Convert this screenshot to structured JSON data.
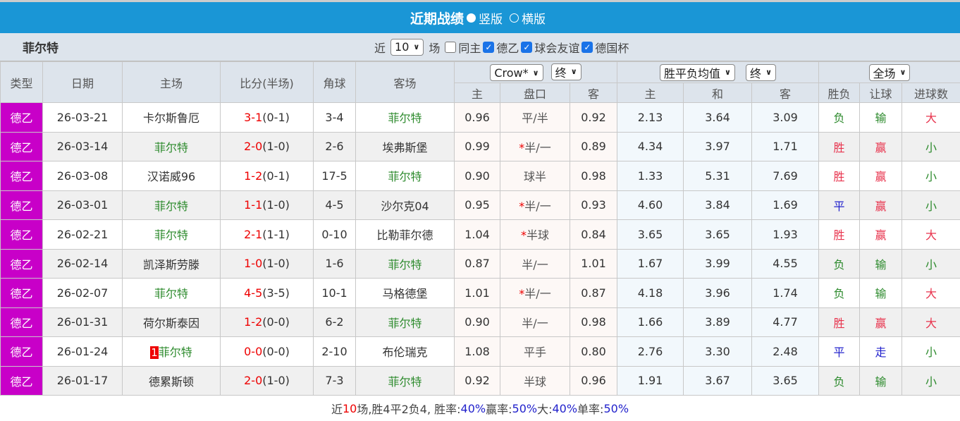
{
  "header": {
    "title": "近期战绩",
    "options": [
      {
        "label": "竖版",
        "selected": true
      },
      {
        "label": "横版",
        "selected": false
      }
    ]
  },
  "team": "菲尔特",
  "filters": {
    "prefix": "近",
    "count": "10",
    "suffix": "场",
    "checks": [
      {
        "label": "同主",
        "checked": false
      },
      {
        "label": "德乙",
        "checked": true
      },
      {
        "label": "球会友谊",
        "checked": true
      },
      {
        "label": "德国杯",
        "checked": true
      }
    ]
  },
  "columns": {
    "type": "类型",
    "date": "日期",
    "home": "主场",
    "score": "比分(半场)",
    "corner": "角球",
    "away": "客场",
    "ah_company": "Crow*",
    "ah_time": "终",
    "eu_company": "胜平负均值",
    "eu_time": "终",
    "scope": "全场",
    "ah_sub": [
      "主",
      "盘口",
      "客"
    ],
    "eu_sub": [
      "主",
      "和",
      "客"
    ],
    "res": [
      "胜负",
      "让球",
      "进球数"
    ]
  },
  "colors": {
    "header": "#1a96d6",
    "league": "#c800c8",
    "win": "#e00",
    "loss": "#2e8b2e",
    "draw": "#22c"
  },
  "rows": [
    {
      "league": "德乙",
      "date": "26-03-21",
      "home": "卡尔斯鲁厄",
      "home_is_team": false,
      "score": "3-1",
      "half": "(0-1)",
      "corner": "3-4",
      "away": "菲尔特",
      "away_is_team": true,
      "ah_h": "0.96",
      "ah_line": "平/半",
      "ah_star": false,
      "ah_a": "0.92",
      "eu_h": "2.13",
      "eu_d": "3.64",
      "eu_a": "3.09",
      "wdl": "负",
      "ahr": "输",
      "ou": "大"
    },
    {
      "league": "德乙",
      "date": "26-03-14",
      "home": "菲尔特",
      "home_is_team": true,
      "score": "2-0",
      "half": "(1-0)",
      "corner": "2-6",
      "away": "埃弗斯堡",
      "away_is_team": false,
      "ah_h": "0.99",
      "ah_line": "半/一",
      "ah_star": true,
      "ah_a": "0.89",
      "eu_h": "4.34",
      "eu_d": "3.97",
      "eu_a": "1.71",
      "wdl": "胜",
      "ahr": "赢",
      "ou": "小"
    },
    {
      "league": "德乙",
      "date": "26-03-08",
      "home": "汉诺威96",
      "home_is_team": false,
      "score": "1-2",
      "half": "(0-1)",
      "corner": "17-5",
      "away": "菲尔特",
      "away_is_team": true,
      "ah_h": "0.90",
      "ah_line": "球半",
      "ah_star": false,
      "ah_a": "0.98",
      "eu_h": "1.33",
      "eu_d": "5.31",
      "eu_a": "7.69",
      "wdl": "胜",
      "ahr": "赢",
      "ou": "小"
    },
    {
      "league": "德乙",
      "date": "26-03-01",
      "home": "菲尔特",
      "home_is_team": true,
      "score": "1-1",
      "half": "(1-0)",
      "corner": "4-5",
      "away": "沙尔克04",
      "away_is_team": false,
      "ah_h": "0.95",
      "ah_line": "半/一",
      "ah_star": true,
      "ah_a": "0.93",
      "eu_h": "4.60",
      "eu_d": "3.84",
      "eu_a": "1.69",
      "wdl": "平",
      "ahr": "赢",
      "ou": "小"
    },
    {
      "league": "德乙",
      "date": "26-02-21",
      "home": "菲尔特",
      "home_is_team": true,
      "score": "2-1",
      "half": "(1-1)",
      "corner": "0-10",
      "away": "比勒菲尔德",
      "away_is_team": false,
      "ah_h": "1.04",
      "ah_line": "半球",
      "ah_star": true,
      "ah_a": "0.84",
      "eu_h": "3.65",
      "eu_d": "3.65",
      "eu_a": "1.93",
      "wdl": "胜",
      "ahr": "赢",
      "ou": "大"
    },
    {
      "league": "德乙",
      "date": "26-02-14",
      "home": "凯泽斯劳滕",
      "home_is_team": false,
      "score": "1-0",
      "half": "(1-0)",
      "corner": "1-6",
      "away": "菲尔特",
      "away_is_team": true,
      "ah_h": "0.87",
      "ah_line": "半/一",
      "ah_star": false,
      "ah_a": "1.01",
      "eu_h": "1.67",
      "eu_d": "3.99",
      "eu_a": "4.55",
      "wdl": "负",
      "ahr": "输",
      "ou": "小"
    },
    {
      "league": "德乙",
      "date": "26-02-07",
      "home": "菲尔特",
      "home_is_team": true,
      "score": "4-5",
      "half": "(3-5)",
      "corner": "10-1",
      "away": "马格德堡",
      "away_is_team": false,
      "ah_h": "1.01",
      "ah_line": "半/一",
      "ah_star": true,
      "ah_a": "0.87",
      "eu_h": "4.18",
      "eu_d": "3.96",
      "eu_a": "1.74",
      "wdl": "负",
      "ahr": "输",
      "ou": "大"
    },
    {
      "league": "德乙",
      "date": "26-01-31",
      "home": "荷尔斯泰因",
      "home_is_team": false,
      "score": "1-2",
      "half": "(0-0)",
      "corner": "6-2",
      "away": "菲尔特",
      "away_is_team": true,
      "ah_h": "0.90",
      "ah_line": "半/一",
      "ah_star": false,
      "ah_a": "0.98",
      "eu_h": "1.66",
      "eu_d": "3.89",
      "eu_a": "4.77",
      "wdl": "胜",
      "ahr": "赢",
      "ou": "大"
    },
    {
      "league": "德乙",
      "date": "26-01-24",
      "home": "菲尔特",
      "home_badge": "1",
      "home_is_team": true,
      "score": "0-0",
      "half": "(0-0)",
      "corner": "2-10",
      "away": "布伦瑞克",
      "away_is_team": false,
      "ah_h": "1.08",
      "ah_line": "平手",
      "ah_star": false,
      "ah_a": "0.80",
      "eu_h": "2.76",
      "eu_d": "3.30",
      "eu_a": "2.48",
      "wdl": "平",
      "ahr": "走",
      "ou": "小"
    },
    {
      "league": "德乙",
      "date": "26-01-17",
      "home": "德累斯顿",
      "home_is_team": false,
      "score": "2-0",
      "half": "(1-0)",
      "corner": "7-3",
      "away": "菲尔特",
      "away_is_team": true,
      "ah_h": "0.92",
      "ah_line": "半球",
      "ah_star": false,
      "ah_a": "0.96",
      "eu_h": "1.91",
      "eu_d": "3.67",
      "eu_a": "3.65",
      "wdl": "负",
      "ahr": "输",
      "ou": "小"
    }
  ],
  "summary": {
    "p1": "近",
    "n": "10",
    "p2": "场,胜4平2负4, 胜率:",
    "win_rate": "40%",
    "p3": " 赢率:",
    "ah_rate": "50%",
    "p4": " 大:",
    "over_rate": "40%",
    "p5": " 单率:",
    "odd_rate": "50%"
  }
}
